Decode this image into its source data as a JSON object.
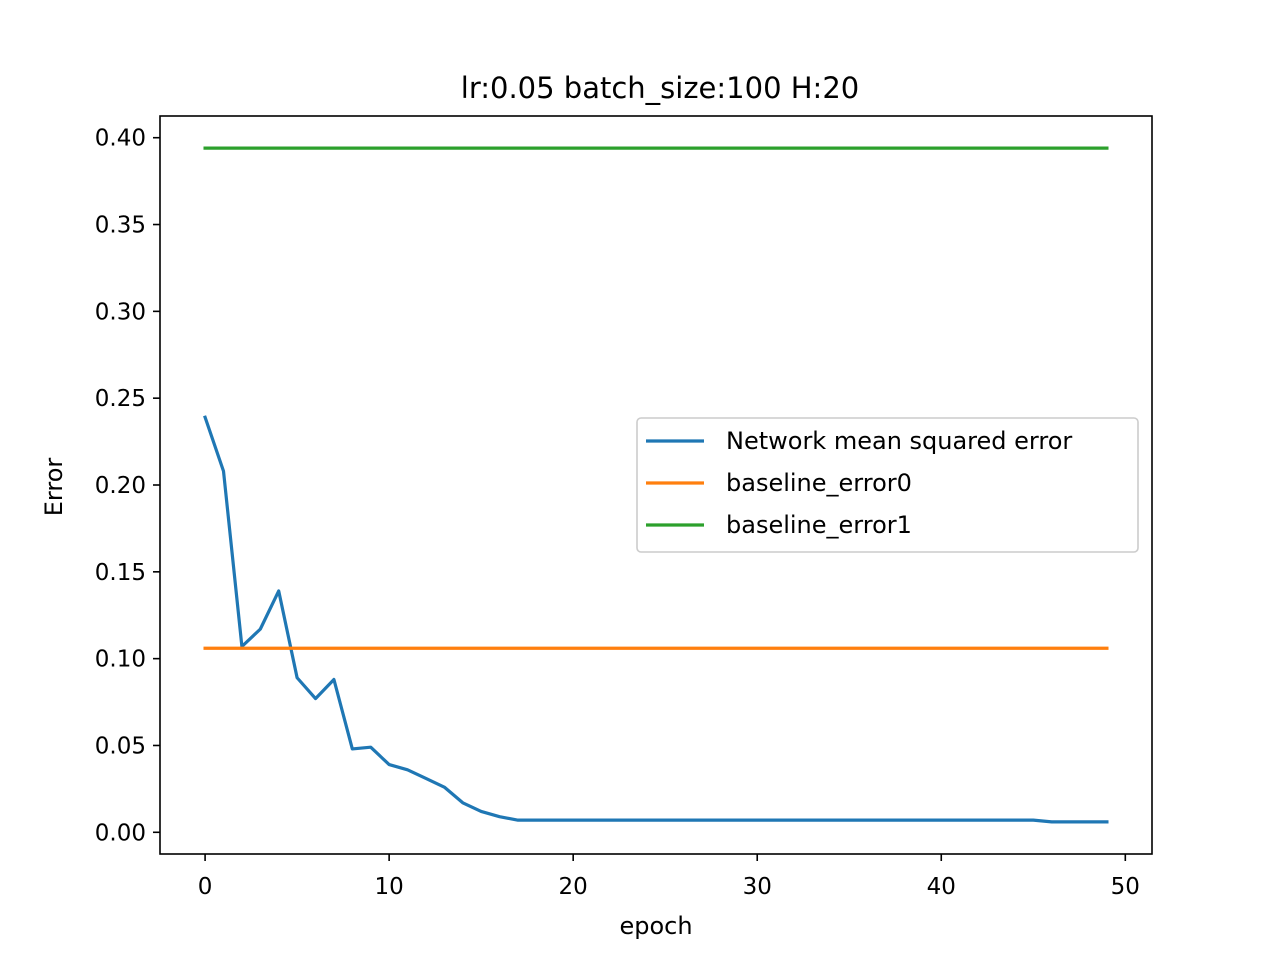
{
  "chart_data": {
    "type": "line",
    "title": "lr:0.05 batch_size:100 H:20",
    "xlabel": "epoch",
    "ylabel": "Error",
    "xlim": [
      -2.45,
      51.45
    ],
    "ylim": [
      -0.0125,
      0.4125
    ],
    "xticks": [
      0,
      10,
      20,
      30,
      40,
      50
    ],
    "xtick_labels": [
      "0",
      "10",
      "20",
      "30",
      "40",
      "50"
    ],
    "yticks": [
      0.0,
      0.05,
      0.1,
      0.15,
      0.2,
      0.25,
      0.3,
      0.35,
      0.4
    ],
    "ytick_labels": [
      "0.00",
      "0.05",
      "0.10",
      "0.15",
      "0.20",
      "0.25",
      "0.30",
      "0.35",
      "0.40"
    ],
    "grid": false,
    "legend_position": "center-right",
    "series": [
      {
        "name": "Network mean squared error",
        "color": "#1f77b4",
        "x": [
          0,
          1,
          2,
          3,
          4,
          5,
          6,
          7,
          8,
          9,
          10,
          11,
          12,
          13,
          14,
          15,
          16,
          17,
          18,
          19,
          20,
          21,
          22,
          23,
          24,
          25,
          26,
          27,
          28,
          29,
          30,
          31,
          32,
          33,
          34,
          35,
          36,
          37,
          38,
          39,
          40,
          41,
          42,
          43,
          44,
          45,
          46,
          47,
          48,
          49
        ],
        "values": [
          0.239,
          0.208,
          0.107,
          0.117,
          0.139,
          0.089,
          0.077,
          0.088,
          0.048,
          0.049,
          0.039,
          0.036,
          0.031,
          0.026,
          0.017,
          0.012,
          0.009,
          0.007,
          0.007,
          0.007,
          0.007,
          0.007,
          0.007,
          0.007,
          0.007,
          0.007,
          0.007,
          0.007,
          0.007,
          0.007,
          0.007,
          0.007,
          0.007,
          0.007,
          0.007,
          0.007,
          0.007,
          0.007,
          0.007,
          0.007,
          0.007,
          0.007,
          0.007,
          0.007,
          0.007,
          0.007,
          0.006,
          0.006,
          0.006,
          0.006
        ]
      },
      {
        "name": "baseline_error0",
        "color": "#ff7f0e",
        "x": [
          0,
          49
        ],
        "values": [
          0.106,
          0.106
        ]
      },
      {
        "name": "baseline_error1",
        "color": "#2ca02c",
        "x": [
          0,
          49
        ],
        "values": [
          0.394,
          0.394
        ]
      }
    ]
  }
}
